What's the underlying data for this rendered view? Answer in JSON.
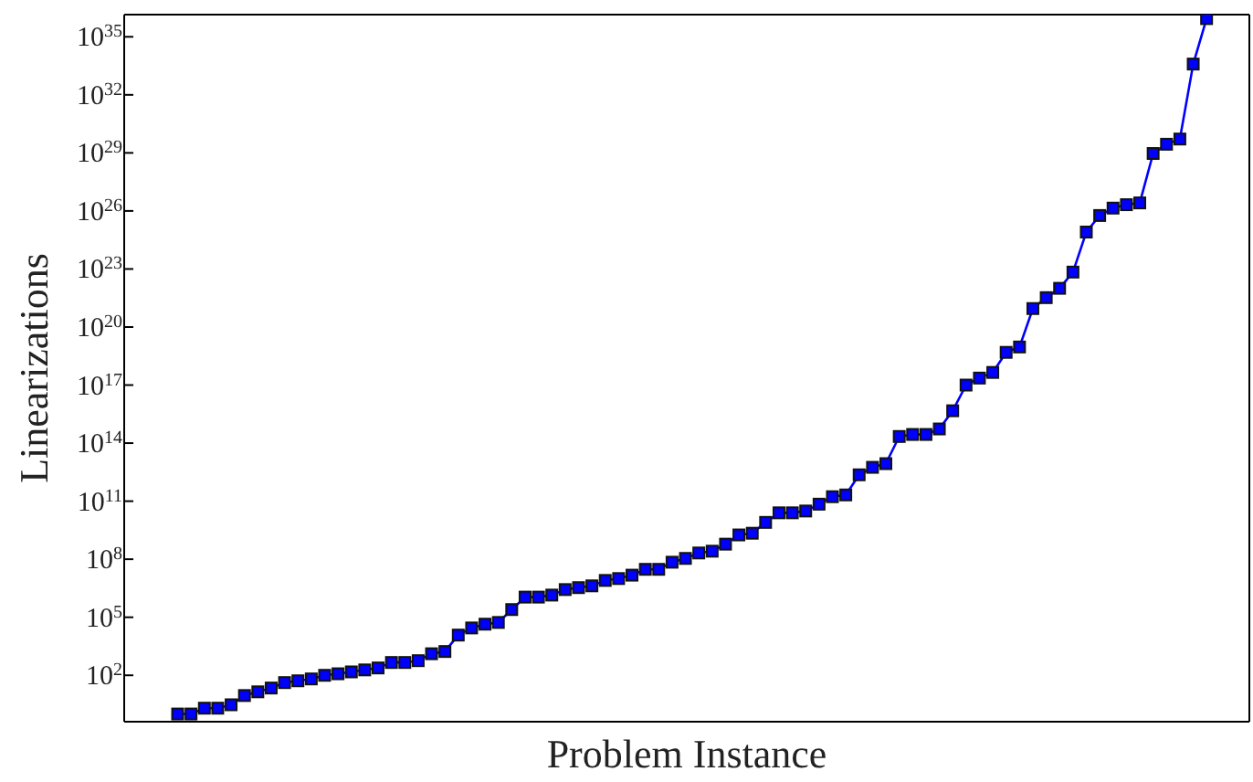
{
  "chart_data": {
    "type": "line",
    "xlabel": "Problem Instance",
    "ylabel": "Linearizations",
    "log": true,
    "marker": "square",
    "line_style": "solid",
    "tick_labels": "y",
    "categories": [
      null,
      null,
      null,
      null,
      null,
      null,
      null,
      null,
      null,
      null,
      null,
      null,
      null,
      null,
      null,
      null,
      null,
      null,
      null,
      null,
      null,
      null,
      null,
      null,
      null,
      null,
      null,
      null,
      null,
      null,
      null,
      null,
      null,
      null,
      null,
      null,
      null,
      null,
      null,
      null,
      null,
      null,
      null,
      null,
      null,
      null,
      null,
      null,
      null,
      null,
      null,
      null,
      null,
      null,
      null,
      null,
      null,
      null,
      null,
      null,
      null,
      null,
      null,
      null,
      null,
      null,
      null,
      null,
      null,
      null,
      null,
      null,
      null,
      null,
      null,
      null,
      null,
      null
    ],
    "series": [
      {
        "color": "#0000ff",
        "values": [
          1,
          1,
          2,
          2,
          3,
          9,
          14,
          22,
          42,
          52,
          65,
          100,
          120,
          150,
          190,
          240,
          460,
          460,
          570,
          1300,
          1700,
          12000,
          28000,
          44000,
          54000,
          250000,
          1100000,
          1100000,
          1400000,
          2700000,
          3400000,
          4200000,
          8000000,
          10000000,
          15000000,
          30000000,
          30000000,
          70000000,
          110000000,
          210000000,
          260000000,
          600000000,
          1800000000,
          2200000000,
          8000000000,
          25000000000,
          25000000000,
          31000000000,
          70000000000,
          170000000000,
          210000000000,
          2300000000000.0,
          5600000000000.0,
          8700000000000.0,
          220000000000000.0,
          280000000000000.0,
          280000000000000.0,
          540000000000000.0,
          4700000000000000.0,
          1e+17,
          2.3e+17,
          4.5e+17,
          4.9e+18,
          9.3e+18,
          9e+20,
          3.3e+21,
          1e+22,
          6.9e+22,
          8.1e+24,
          5.8e+25,
          1.4e+26,
          2.1e+26,
          2.6e+26,
          9.3e+28,
          2.8e+29,
          5.2e+29,
          3.9e+33,
          8.7e+35
        ]
      }
    ],
    "ylim": [
      0.4,
      1.4e+36
    ],
    "yticks": [
      {
        "value": 100,
        "label": "10$^{2}$"
      },
      {
        "value": 100000,
        "label": "10$^{5}$"
      },
      {
        "value": 100000000,
        "label": "10$^{8}$"
      },
      {
        "value": 100000000000,
        "label": "10$^{11}$"
      },
      {
        "value": 100000000000000.0,
        "label": "10$^{14}$"
      },
      {
        "value": 1e+17,
        "label": "10$^{17}$"
      },
      {
        "value": 1e+20,
        "label": "10$^{20}$"
      },
      {
        "value": 1e+23,
        "label": "10$^{23}$"
      },
      {
        "value": 1e+26,
        "label": "10$^{26}$"
      },
      {
        "value": 1e+29,
        "label": "10$^{29}$"
      },
      {
        "value": 1e+32,
        "label": "10$^{32}$"
      },
      {
        "value": 1e+35,
        "label": "10$^{35}$"
      }
    ]
  }
}
